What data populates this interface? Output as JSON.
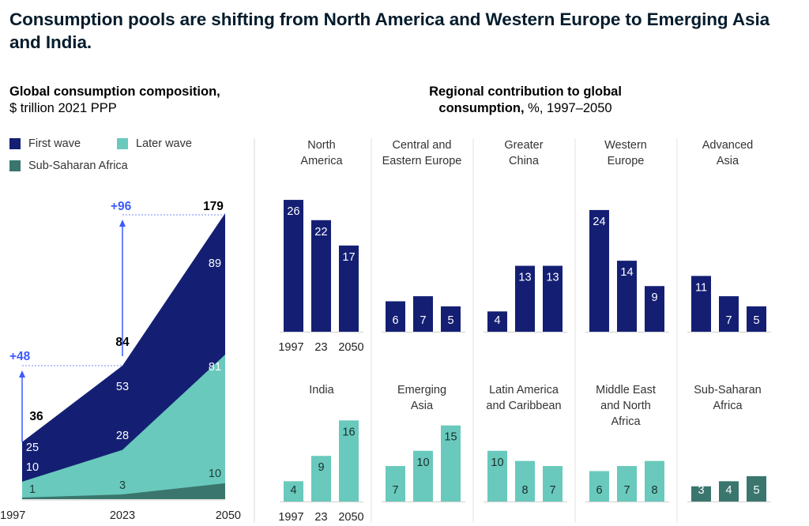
{
  "title": "Consumption pools are shifting from North America and Western Europe to Emerging Asia and India.",
  "left_header": {
    "bold": "Global consumption composition,",
    "normal": "$ trillion 2021 PPP"
  },
  "right_header": {
    "bold_line1": "Regional contribution to global",
    "bold_line2": "consumption,",
    "normal_line2": " %, 1997–2050"
  },
  "legend": [
    {
      "label": "First wave",
      "color": "#141f73"
    },
    {
      "label": "Later wave",
      "color": "#69c9bc"
    },
    {
      "label": "Sub-Saharan Africa",
      "color": "#3a766d"
    }
  ],
  "colors": {
    "first_wave": "#141f73",
    "later_wave": "#69c9bc",
    "ssa": "#3a766d",
    "annotation": "#3c5aff",
    "divider": "#dddddd"
  },
  "chart_data": [
    {
      "type": "area",
      "title": "Global consumption composition, $ trillion 2021 PPP",
      "x": [
        "1997",
        "2023",
        "2050"
      ],
      "stacked": true,
      "series": [
        {
          "name": "Sub-Saharan Africa",
          "values": [
            1,
            3,
            10
          ]
        },
        {
          "name": "Later wave",
          "values": [
            10,
            28,
            81
          ]
        },
        {
          "name": "First wave",
          "values": [
            25,
            53,
            89
          ]
        }
      ],
      "series_labels": {
        "Sub-Saharan Africa": [
          "1",
          "3",
          "10"
        ],
        "Later wave": [
          "10",
          "28",
          "81"
        ],
        "First wave": [
          "25",
          "53",
          "89"
        ]
      },
      "totals": [
        36,
        84,
        179
      ],
      "total_labels": [
        "36",
        "84",
        "179"
      ],
      "increments": [
        {
          "from": "1997",
          "to": "2023",
          "label": "+48"
        },
        {
          "from": "2023",
          "to": "2050",
          "label": "+96"
        }
      ],
      "ylim": [
        0,
        179
      ],
      "grid": false
    },
    {
      "type": "bar",
      "title": "Regional contribution to global consumption, %, 1997–2050",
      "categories": [
        "1997",
        "23",
        "2050"
      ],
      "ylabel": "%",
      "panels": [
        {
          "name": [
            "North",
            "America"
          ],
          "group": "first_wave",
          "values": [
            26,
            22,
            17
          ],
          "labels": [
            "26",
            "22",
            "17"
          ],
          "show_axis": true
        },
        {
          "name": [
            "Central and",
            "Eastern Europe"
          ],
          "group": "first_wave",
          "values": [
            6,
            7,
            5
          ],
          "labels": [
            "6",
            "7",
            "5"
          ]
        },
        {
          "name": [
            "Greater",
            "China"
          ],
          "group": "first_wave",
          "values": [
            4,
            13,
            13
          ],
          "labels": [
            "4",
            "13",
            "13"
          ]
        },
        {
          "name": [
            "Western",
            "Europe"
          ],
          "group": "first_wave",
          "values": [
            24,
            14,
            9
          ],
          "labels": [
            "24",
            "14",
            "9"
          ]
        },
        {
          "name": [
            "Advanced",
            "Asia"
          ],
          "group": "first_wave",
          "values": [
            11,
            7,
            5
          ],
          "labels": [
            "11",
            "7",
            "5"
          ]
        },
        {
          "name": [
            "India"
          ],
          "group": "later_wave",
          "values": [
            4,
            9,
            16
          ],
          "labels": [
            "4",
            "9",
            "16"
          ],
          "show_axis": true
        },
        {
          "name": [
            "Emerging",
            "Asia"
          ],
          "group": "later_wave",
          "values": [
            7,
            10,
            15
          ],
          "labels": [
            "7",
            "10",
            "15"
          ]
        },
        {
          "name": [
            "Latin America",
            "and Caribbean"
          ],
          "group": "later_wave",
          "values": [
            10,
            8,
            7
          ],
          "labels": [
            "10",
            "8",
            "7"
          ]
        },
        {
          "name": [
            "Middle East",
            "and North",
            "Africa"
          ],
          "group": "later_wave",
          "values": [
            6,
            7,
            8
          ],
          "labels": [
            "6",
            "7",
            "8"
          ]
        },
        {
          "name": [
            "Sub-Saharan",
            "Africa"
          ],
          "group": "ssa",
          "values": [
            3,
            4,
            5
          ],
          "labels": [
            "3",
            "4",
            "5"
          ]
        }
      ]
    }
  ]
}
